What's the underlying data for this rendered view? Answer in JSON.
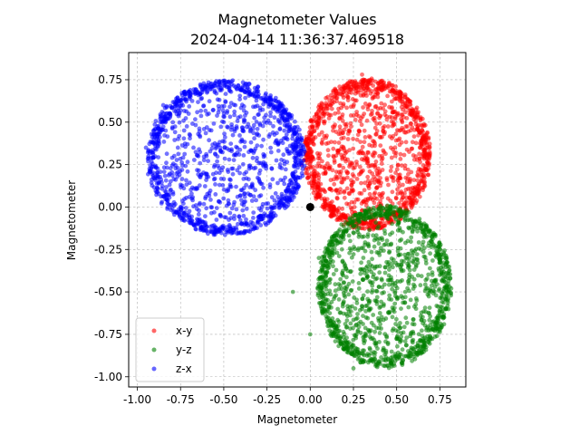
{
  "chart_data": {
    "type": "scatter",
    "title": "Magnetometer Values",
    "subtitle": "2024-04-14 11:36:37.469518",
    "xlabel": "Magnetometer",
    "ylabel": "Magnetometer",
    "xlim": [
      -1.05,
      0.9
    ],
    "ylim": [
      -1.06,
      0.91
    ],
    "grid": true,
    "legend_position": "lower-left",
    "x_ticks": [
      -1.0,
      -0.75,
      -0.5,
      -0.25,
      0.0,
      0.25,
      0.5,
      0.75
    ],
    "x_tick_labels": [
      "-1.00",
      "-0.75",
      "-0.50",
      "-0.25",
      "0.00",
      "0.25",
      "0.50",
      "0.75"
    ],
    "y_ticks": [
      -1.0,
      -0.75,
      -0.5,
      -0.25,
      0.0,
      0.25,
      0.5,
      0.75
    ],
    "y_tick_labels": [
      "-1.00",
      "-0.75",
      "-0.50",
      "-0.25",
      "0.00",
      "0.25",
      "0.50",
      "0.75"
    ],
    "series": [
      {
        "name": "x-y",
        "color": "#ff0000",
        "cloud": {
          "center": [
            0.33,
            0.31
          ],
          "radius": [
            0.36,
            0.44
          ]
        },
        "sample_points": [
          [
            0.3,
            0.78
          ],
          [
            0.0,
            0.4
          ],
          [
            0.15,
            0.1
          ],
          [
            0.45,
            0.05
          ],
          [
            0.68,
            0.35
          ],
          [
            0.2,
            0.7
          ],
          [
            -0.05,
            0.25
          ],
          [
            0.3,
            -0.02
          ],
          [
            0.55,
            0.65
          ],
          [
            0.1,
            0.55
          ],
          [
            0.4,
            0.3
          ],
          [
            0.65,
            0.15
          ]
        ]
      },
      {
        "name": "y-z",
        "color": "#008000",
        "cloud": {
          "center": [
            0.43,
            -0.47
          ],
          "radius": [
            0.38,
            0.47
          ]
        },
        "sample_points": [
          [
            0.25,
            -0.95
          ],
          [
            -0.1,
            -0.5
          ],
          [
            0.05,
            -0.3
          ],
          [
            0.4,
            -0.05
          ],
          [
            0.75,
            -0.4
          ],
          [
            0.6,
            -0.85
          ],
          [
            0.0,
            -0.75
          ],
          [
            0.7,
            -0.2
          ],
          [
            0.3,
            -0.6
          ],
          [
            0.55,
            -0.5
          ],
          [
            0.2,
            -0.35
          ],
          [
            0.45,
            -0.8
          ]
        ]
      },
      {
        "name": "z-x",
        "color": "#0000ff",
        "cloud": {
          "center": [
            -0.49,
            0.29
          ],
          "radius": [
            0.45,
            0.45
          ]
        },
        "sample_points": [
          [
            -0.55,
            0.73
          ],
          [
            -0.95,
            0.35
          ],
          [
            -0.75,
            0.0
          ],
          [
            -0.45,
            -0.15
          ],
          [
            -0.1,
            0.2
          ],
          [
            -0.3,
            0.65
          ],
          [
            -0.85,
            0.6
          ],
          [
            -0.6,
            0.3
          ],
          [
            -0.2,
            -0.05
          ],
          [
            -0.5,
            0.5
          ],
          [
            -0.4,
            0.1
          ],
          [
            -0.15,
            0.45
          ]
        ]
      }
    ],
    "marker": {
      "x": 0.0,
      "y": 0.0,
      "color": "#000000"
    }
  }
}
